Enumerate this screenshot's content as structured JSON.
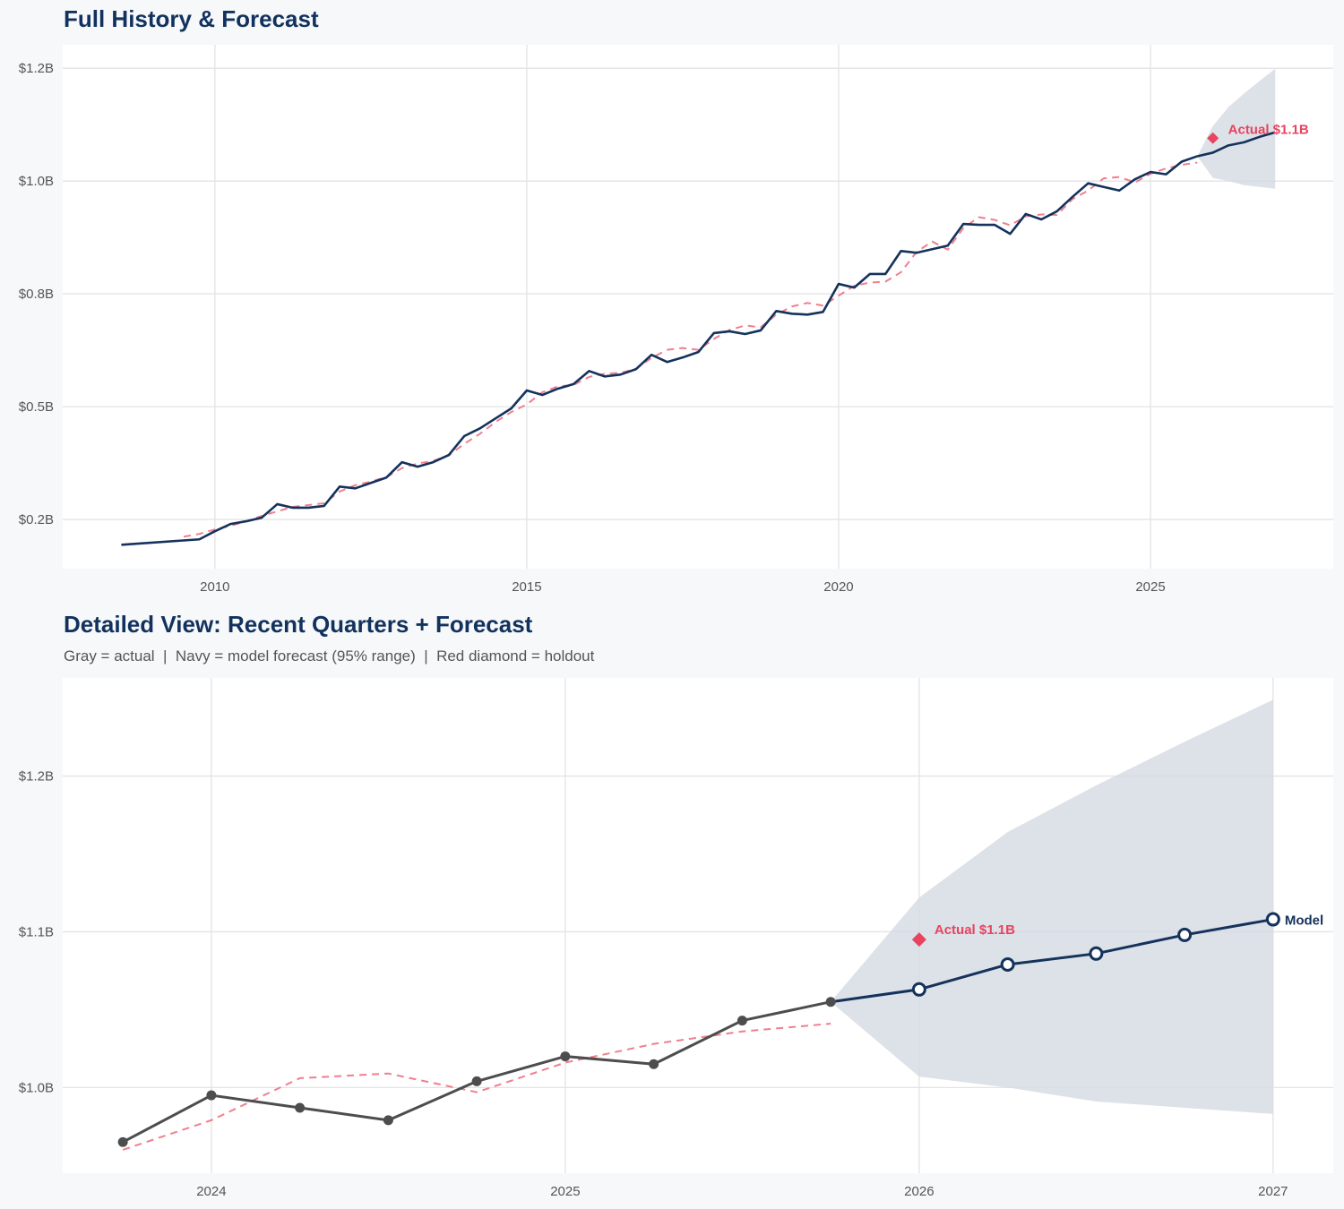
{
  "colors": {
    "actual_navy": "#14325c",
    "actual_gray": "#4d4d4d",
    "fitted": "#ef7f8f",
    "holdout": "#e8435f",
    "band": "#d5dae2",
    "grid": "#e3e3e3",
    "plot_bg": "#ffffff"
  },
  "chart_data": [
    {
      "type": "line",
      "title": "Full History & Forecast",
      "xlim": [
        2007.56,
        2027.93
      ],
      "ylim": [
        0.141,
        1.302
      ],
      "grid": true,
      "x_ticks": [
        {
          "v": 2010,
          "label": "2010"
        },
        {
          "v": 2015,
          "label": "2015"
        },
        {
          "v": 2020,
          "label": "2020"
        },
        {
          "v": 2025,
          "label": "2025"
        }
      ],
      "y_ticks": [
        {
          "v": 0.25,
          "label": "$0.2B"
        },
        {
          "v": 0.5,
          "label": "$0.5B"
        },
        {
          "v": 0.75,
          "label": "$0.8B"
        },
        {
          "v": 1.0,
          "label": "$1.0B"
        },
        {
          "v": 1.25,
          "label": "$1.2B"
        }
      ],
      "series": [
        {
          "role": "actual",
          "x": [
            2008.5,
            2009.75,
            2010.0,
            2010.25,
            2010.5,
            2010.75,
            2011.0,
            2011.25,
            2011.5,
            2011.75,
            2012.0,
            2012.25,
            2012.5,
            2012.75,
            2013.0,
            2013.25,
            2013.5,
            2013.75,
            2014.0,
            2014.25,
            2014.5,
            2014.75,
            2015.0,
            2015.25,
            2015.5,
            2015.75,
            2016.0,
            2016.25,
            2016.5,
            2016.75,
            2017.0,
            2017.25,
            2017.5,
            2017.75,
            2018.0,
            2018.25,
            2018.5,
            2018.75,
            2019.0,
            2019.25,
            2019.5,
            2019.75,
            2020.0,
            2020.25,
            2020.5,
            2020.75,
            2021.0,
            2021.25,
            2021.5,
            2021.75,
            2022.0,
            2022.25,
            2022.5,
            2022.75,
            2023.0,
            2023.25,
            2023.5,
            2023.75,
            2024.0,
            2024.25,
            2024.5,
            2024.75,
            2025.0,
            2025.25,
            2025.5,
            2025.75
          ],
          "y": [
            0.194,
            0.206,
            0.224,
            0.24,
            0.246,
            0.254,
            0.284,
            0.276,
            0.276,
            0.28,
            0.323,
            0.319,
            0.331,
            0.343,
            0.377,
            0.367,
            0.377,
            0.393,
            0.435,
            0.452,
            0.474,
            0.496,
            0.536,
            0.526,
            0.54,
            0.55,
            0.579,
            0.567,
            0.571,
            0.583,
            0.615,
            0.599,
            0.609,
            0.621,
            0.663,
            0.667,
            0.661,
            0.669,
            0.712,
            0.706,
            0.704,
            0.71,
            0.772,
            0.764,
            0.794,
            0.794,
            0.845,
            0.841,
            0.849,
            0.857,
            0.905,
            0.903,
            0.903,
            0.883,
            0.927,
            0.915,
            0.933,
            0.965,
            0.995,
            0.987,
            0.979,
            1.004,
            1.02,
            1.015,
            1.043,
            1.055
          ]
        },
        {
          "role": "fitted",
          "x": [
            2009.5,
            2009.75,
            2010.0,
            2010.25,
            2010.5,
            2010.75,
            2011.0,
            2011.25,
            2011.5,
            2011.75,
            2012.0,
            2012.25,
            2012.5,
            2012.75,
            2013.0,
            2013.25,
            2013.5,
            2013.75,
            2014.0,
            2014.25,
            2014.5,
            2014.75,
            2015.0,
            2015.25,
            2015.5,
            2015.75,
            2016.0,
            2016.25,
            2016.5,
            2016.75,
            2017.0,
            2017.25,
            2017.5,
            2017.75,
            2018.0,
            2018.25,
            2018.5,
            2018.75,
            2019.0,
            2019.25,
            2019.5,
            2019.75,
            2020.0,
            2020.25,
            2020.5,
            2020.75,
            2021.0,
            2021.25,
            2021.5,
            2021.75,
            2022.0,
            2022.25,
            2022.5,
            2022.75,
            2023.0,
            2023.25,
            2023.5,
            2023.75,
            2024.0,
            2024.25,
            2024.5,
            2024.75,
            2025.0,
            2025.25,
            2025.5,
            2025.75
          ],
          "y": [
            0.212,
            0.218,
            0.228,
            0.236,
            0.246,
            0.258,
            0.268,
            0.278,
            0.282,
            0.286,
            0.312,
            0.326,
            0.334,
            0.344,
            0.364,
            0.374,
            0.38,
            0.392,
            0.418,
            0.44,
            0.466,
            0.488,
            0.505,
            0.532,
            0.545,
            0.548,
            0.566,
            0.573,
            0.575,
            0.584,
            0.608,
            0.626,
            0.63,
            0.626,
            0.65,
            0.67,
            0.68,
            0.676,
            0.704,
            0.722,
            0.73,
            0.724,
            0.746,
            0.768,
            0.775,
            0.777,
            0.798,
            0.843,
            0.866,
            0.848,
            0.896,
            0.92,
            0.914,
            0.902,
            0.922,
            0.926,
            0.925,
            0.96,
            0.979,
            1.006,
            1.009,
            0.997,
            1.016,
            1.028,
            1.036,
            1.041
          ]
        },
        {
          "role": "forecast",
          "x": [
            2025.75,
            2026.0,
            2026.25,
            2026.5,
            2026.75,
            2027.0
          ],
          "y": [
            1.055,
            1.063,
            1.079,
            1.086,
            1.098,
            1.108
          ]
        }
      ],
      "band": {
        "x": [
          2025.75,
          2026.0,
          2026.25,
          2026.5,
          2026.75,
          2027.0
        ],
        "upper": [
          1.055,
          1.122,
          1.164,
          1.194,
          1.222,
          1.249
        ],
        "lower": [
          1.055,
          1.007,
          1.0,
          0.991,
          0.987,
          0.983
        ]
      },
      "holdout": {
        "x": 2026.0,
        "y": 1.095,
        "label": "Actual $1.1B"
      }
    },
    {
      "type": "line",
      "title": "Detailed View: Recent Quarters + Forecast",
      "subtitle": "Gray = actual  |  Navy = model forecast (95% range)  |  Red diamond = holdout",
      "xlim": [
        2023.58,
        2027.17
      ],
      "ylim": [
        0.945,
        1.263
      ],
      "grid": true,
      "x_ticks": [
        {
          "v": 2024,
          "label": "2024"
        },
        {
          "v": 2025,
          "label": "2025"
        },
        {
          "v": 2026,
          "label": "2026"
        },
        {
          "v": 2027,
          "label": "2027"
        }
      ],
      "y_ticks": [
        {
          "v": 1.0,
          "label": "$1.0B"
        },
        {
          "v": 1.1,
          "label": "$1.1B"
        },
        {
          "v": 1.2,
          "label": "$1.2B"
        }
      ],
      "series": [
        {
          "role": "actual",
          "x": [
            2023.75,
            2024.0,
            2024.25,
            2024.5,
            2024.75,
            2025.0,
            2025.25,
            2025.5,
            2025.75
          ],
          "y": [
            0.965,
            0.995,
            0.987,
            0.979,
            1.004,
            1.02,
            1.015,
            1.043,
            1.055
          ]
        },
        {
          "role": "fitted",
          "x": [
            2023.75,
            2024.0,
            2024.25,
            2024.5,
            2024.75,
            2025.0,
            2025.25,
            2025.5,
            2025.75
          ],
          "y": [
            0.96,
            0.979,
            1.006,
            1.009,
            0.997,
            1.016,
            1.028,
            1.036,
            1.041
          ]
        },
        {
          "role": "forecast",
          "x": [
            2025.75,
            2026.0,
            2026.25,
            2026.5,
            2026.75,
            2027.0
          ],
          "y": [
            1.055,
            1.063,
            1.079,
            1.086,
            1.098,
            1.108
          ],
          "end_label": "Model"
        }
      ],
      "band": {
        "x": [
          2025.75,
          2026.0,
          2026.25,
          2026.5,
          2026.75,
          2027.0
        ],
        "upper": [
          1.055,
          1.122,
          1.164,
          1.194,
          1.222,
          1.249
        ],
        "lower": [
          1.055,
          1.007,
          1.0,
          0.991,
          0.987,
          0.983
        ]
      },
      "holdout": {
        "x": 2026.0,
        "y": 1.095,
        "label": "Actual $1.1B"
      }
    }
  ]
}
